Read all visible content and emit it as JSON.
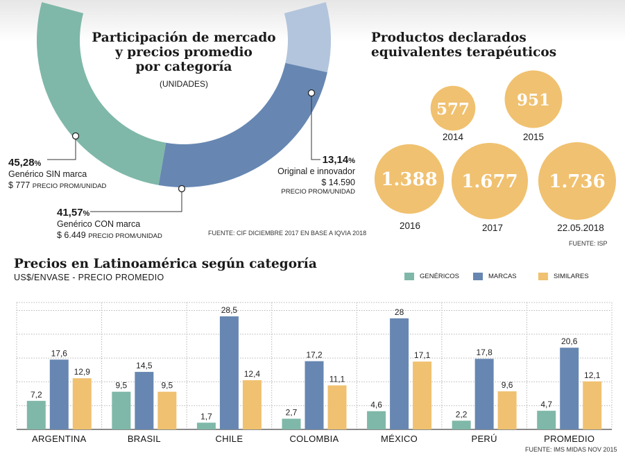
{
  "colors": {
    "genericos": "#7fb8a8",
    "marcas": "#6787b2",
    "similares": "#f0c170",
    "light_blue": "#b3c5dc"
  },
  "donut": {
    "title_lines": [
      "Participación de mercado",
      "y precios promedio",
      "por categoría"
    ],
    "subtitle": "(UNIDADES)",
    "source": "FUENTE: CIF DICIEMBRE 2017 EN BASE A IQVIA 2018",
    "segments": [
      {
        "key": "sin",
        "pct": "45,28",
        "name": "Genérico SIN marca",
        "price": "$ 777",
        "price_note": "PRECIO PROM/UNIDAD"
      },
      {
        "key": "con",
        "pct": "41,57",
        "name": "Genérico CON marca",
        "price": "$ 6.449",
        "price_note": "PRECIO PROM/UNIDAD"
      },
      {
        "key": "orig",
        "pct": "13,14",
        "name": "Original e innovador",
        "price": "$ 14.590",
        "price_note": "PRECIO PROM/UNIDAD"
      }
    ]
  },
  "bubbles": {
    "title_lines": [
      "Productos declarados",
      "equivalentes terapéuticos"
    ],
    "source": "FUENTE: ISP",
    "items": [
      {
        "value": "577",
        "year": "2014",
        "num": 577
      },
      {
        "value": "951",
        "year": "2015",
        "num": 951
      },
      {
        "value": "1.388",
        "year": "2016",
        "num": 1388
      },
      {
        "value": "1.677",
        "year": "2017",
        "num": 1677
      },
      {
        "value": "1.736",
        "year": "22.05.2018",
        "num": 1736
      }
    ]
  },
  "latam": {
    "title": "Precios en Latinoamérica según categoría",
    "subtitle": "US$/ENVASE - PRECIO PROMEDIO",
    "source": "FUENTE: IMS MIDAS NOV 2015"
  },
  "chart_data": {
    "type": "bar",
    "title": "Precios en Latinoamérica según categoría",
    "ylabel": "US$/ENVASE - PRECIO PROMEDIO",
    "ylim": [
      0,
      32
    ],
    "categories": [
      "ARGENTINA",
      "BRASIL",
      "CHILE",
      "COLOMBIA",
      "MÉXICO",
      "PERÚ",
      "PROMEDIO"
    ],
    "series": [
      {
        "name": "GENÉRICOS",
        "key": "genericos",
        "values": [
          7.2,
          9.5,
          1.7,
          2.7,
          4.6,
          2.2,
          4.7
        ],
        "labels": [
          "7,2",
          "9,5",
          "1,7",
          "2,7",
          "4,6",
          "2,2",
          "4,7"
        ]
      },
      {
        "name": "MARCAS",
        "key": "marcas",
        "values": [
          17.6,
          14.5,
          28.5,
          17.2,
          28,
          17.8,
          20.6
        ],
        "labels": [
          "17,6",
          "14,5",
          "28,5",
          "17,2",
          "28",
          "17,8",
          "20,6"
        ]
      },
      {
        "name": "SIMILARES",
        "key": "similares",
        "values": [
          12.9,
          9.5,
          12.4,
          11.1,
          17.1,
          9.6,
          12.1
        ],
        "labels": [
          "12,9",
          "9,5",
          "12,4",
          "11,1",
          "17,1",
          "9,6",
          "12,1"
        ]
      }
    ]
  }
}
